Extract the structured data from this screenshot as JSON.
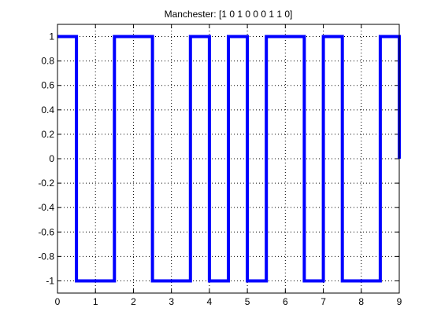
{
  "chart_data": {
    "type": "line",
    "title": "Manchester: [1  0  1  0  0  0  1  1  0]",
    "xlabel": "",
    "ylabel": "",
    "xlim": [
      0,
      9
    ],
    "ylim": [
      -1.1,
      1.1
    ],
    "xticks": [
      0,
      1,
      2,
      3,
      4,
      5,
      6,
      7,
      8,
      9
    ],
    "xtick_labels": [
      "0",
      "1",
      "2",
      "3",
      "4",
      "5",
      "6",
      "7",
      "8",
      "9"
    ],
    "yticks": [
      1,
      0.8,
      0.6,
      0.4,
      0.2,
      0,
      -0.2,
      -0.4,
      -0.6,
      -0.8,
      -1
    ],
    "ytick_labels": [
      "1",
      "0.8",
      "0.6",
      "0.4",
      "0.2",
      "0",
      "-0.2",
      "-0.4",
      "-0.6",
      "-0.8",
      "-1"
    ],
    "grid": true,
    "line_color": "#0000ff",
    "series": [
      {
        "x": [
          0,
          0.5,
          0.5,
          1.5,
          1.5,
          2.5,
          2.5,
          3.5,
          3.5,
          4,
          4,
          4.5,
          4.5,
          5,
          5,
          5.5,
          5.5,
          6.5,
          6.5,
          7,
          7,
          7.5,
          7.5,
          8.5,
          8.5,
          9,
          9
        ],
        "y": [
          1,
          1,
          -1,
          -1,
          1,
          1,
          -1,
          -1,
          1,
          1,
          -1,
          -1,
          1,
          1,
          -1,
          -1,
          1,
          1,
          -1,
          -1,
          1,
          1,
          -1,
          -1,
          1,
          1,
          0
        ]
      }
    ]
  }
}
